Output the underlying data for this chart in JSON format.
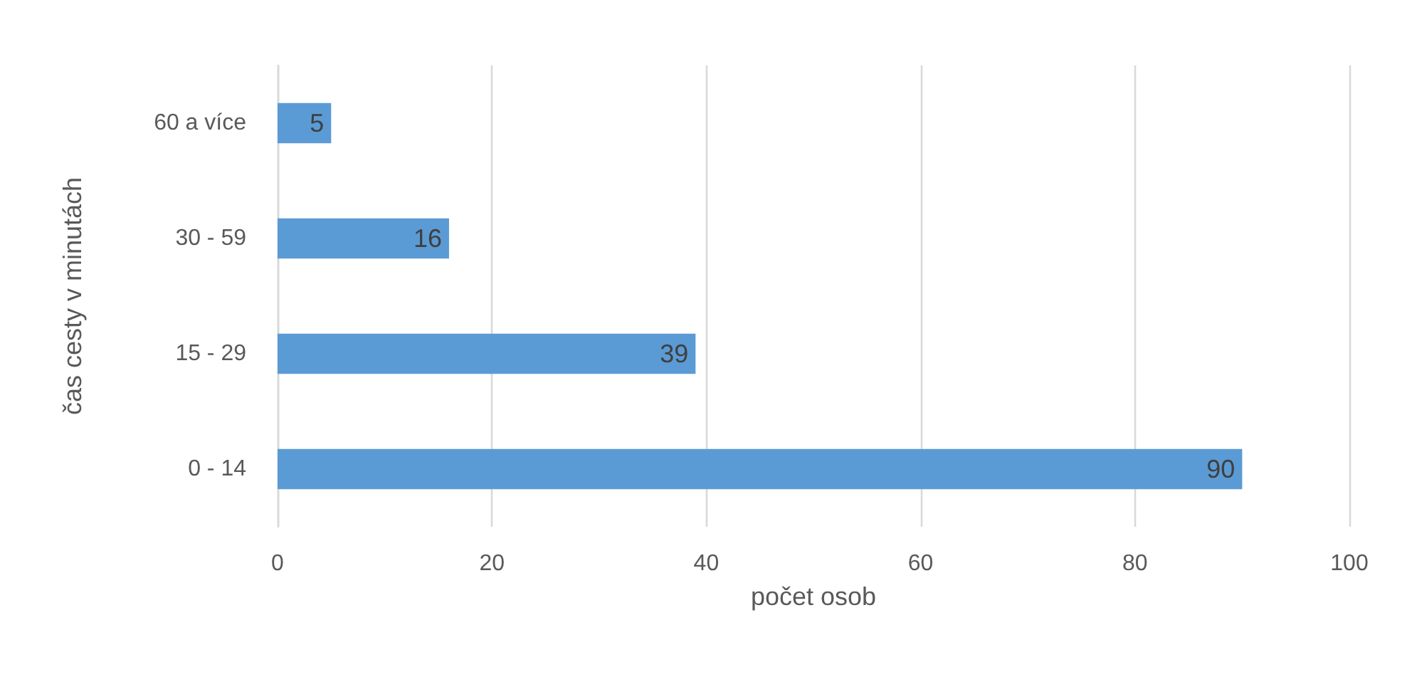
{
  "chart_data": {
    "type": "bar",
    "orientation": "horizontal",
    "xlabel": "počet osob",
    "ylabel": "čas cesty v minutách",
    "categories": [
      "60 a více",
      "30 - 59",
      "15 - 29",
      "0 - 14"
    ],
    "values": [
      5,
      16,
      39,
      90
    ],
    "color": "#5b9bd5",
    "xlim": [
      0,
      100
    ],
    "xticks": [
      0,
      20,
      40,
      60,
      80,
      100
    ],
    "grid": "x",
    "data_labels": true
  }
}
